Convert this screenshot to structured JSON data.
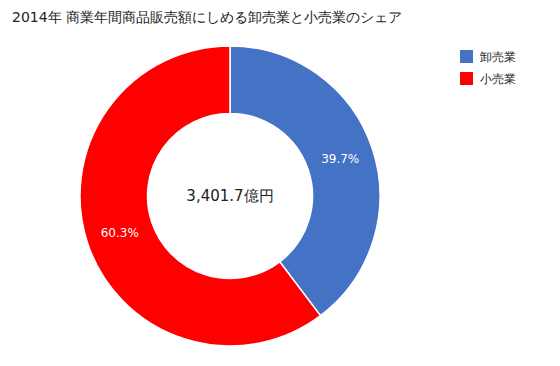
{
  "chart_data": {
    "type": "donut",
    "title": "2014年 商業年間商品販売額にしめる卸売業と小売業のシェア",
    "categories": [
      "卸売業",
      "小売業"
    ],
    "values": [
      39.7,
      60.3
    ],
    "value_labels": [
      "39.7%",
      "60.3%"
    ],
    "data_labels": true,
    "colors": [
      "#4472C4",
      "#FF0000"
    ],
    "annotations": [
      "3,401.7億円"
    ],
    "legend": "upper right"
  }
}
